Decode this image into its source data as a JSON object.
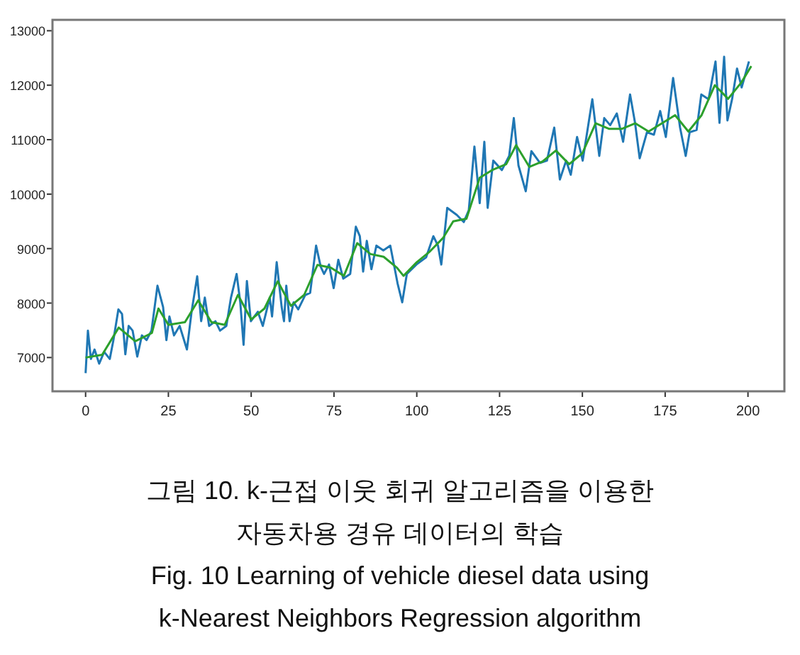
{
  "chart_data": {
    "type": "line",
    "annotations": [
      "그림 10. k-근접 이웃 회귀 알고리즘을 이용한 자동차용 경유 데이터의 학습",
      "Fig. 10 Learning of vehicle diesel data using k-Nearest Neighbors Regression algorithm"
    ],
    "xlim": [
      -10,
      211
    ],
    "xticks": [
      0,
      25,
      50,
      75,
      100,
      125,
      150,
      175,
      200
    ],
    "ylim": [
      6380,
      13200
    ],
    "yticks": [
      7000,
      8000,
      9000,
      10000,
      11000,
      12000,
      13000
    ],
    "grid": false,
    "series": [
      {
        "color": "#1f77b4",
        "x": [
          0,
          0.7,
          1.6,
          2.7,
          4.1,
          5.6,
          7.3,
          8.4,
          9.9,
          11,
          12,
          13,
          14.2,
          15.6,
          17,
          18.4,
          19.9,
          21.7,
          23.4,
          24.4,
          25.3,
          26.7,
          28.4,
          30.6,
          32,
          33.7,
          34.9,
          36,
          37.3,
          39.2,
          40.6,
          42.5,
          43.9,
          45.6,
          46.7,
          47.7,
          48.7,
          49.9,
          52,
          53.5,
          55.6,
          56.3,
          57.7,
          59.2,
          59.9,
          60.6,
          61.6,
          62.8,
          64.2,
          66.3,
          67.8,
          69.6,
          71,
          72,
          73.5,
          74.9,
          76.3,
          77.8,
          79.9,
          81.6,
          82.8,
          83.8,
          84.9,
          86.3,
          87.8,
          89.9,
          92,
          94.2,
          95.6,
          97,
          99.9,
          102.8,
          105,
          106.4,
          107.4,
          109.2,
          112.1,
          114.2,
          115.7,
          117.4,
          119,
          120.4,
          121.4,
          123.1,
          125.7,
          127.9,
          129.3,
          130.7,
          132.9,
          134.6,
          137.2,
          139.3,
          141.5,
          143.2,
          145.1,
          146.5,
          148.4,
          150.1,
          153,
          155.1,
          156.6,
          158.4,
          160.4,
          162.3,
          164.4,
          165.9,
          167.3,
          169.5,
          171.6,
          173.5,
          175.2,
          177.4,
          179.5,
          181.2,
          182.4,
          184.5,
          185.9,
          188.1,
          190.2,
          191.4,
          192.8,
          193.8,
          195.2,
          196.7,
          198.1,
          200.3
        ],
        "values": [
          6714,
          7494,
          6974,
          7147,
          6887,
          7104,
          6974,
          7320,
          7884,
          7800,
          7060,
          7580,
          7494,
          7017,
          7407,
          7320,
          7494,
          8318,
          7928,
          7320,
          7754,
          7407,
          7580,
          7147,
          7840,
          8491,
          7667,
          8100,
          7580,
          7667,
          7494,
          7580,
          8100,
          8535,
          8014,
          7234,
          8405,
          7667,
          7840,
          7580,
          8100,
          7754,
          8751,
          7928,
          7667,
          8318,
          7667,
          8014,
          7884,
          8144,
          8188,
          9055,
          8665,
          8535,
          8708,
          8275,
          8795,
          8448,
          8535,
          9402,
          9228,
          8578,
          9141,
          8621,
          9055,
          8968,
          9055,
          8361,
          8014,
          8535,
          8708,
          8838,
          9228,
          9055,
          8708,
          9748,
          9618,
          9488,
          9705,
          10875,
          9835,
          10962,
          9748,
          10615,
          10442,
          10702,
          11396,
          10529,
          10052,
          10789,
          10572,
          10615,
          11222,
          10269,
          10615,
          10355,
          11049,
          10615,
          11743,
          10702,
          11396,
          11266,
          11482,
          10962,
          11829,
          11309,
          10659,
          11136,
          11092,
          11526,
          11049,
          12133,
          11222,
          10702,
          11136,
          11179,
          11829,
          11743,
          12436,
          11309,
          12523,
          11352,
          11743,
          12306,
          11959,
          12436
        ]
      },
      {
        "color": "#2ca02c",
        "x": [
          0,
          5,
          10,
          15,
          20,
          22,
          25,
          30,
          34,
          38,
          42,
          46,
          50,
          54,
          58,
          62,
          66,
          70,
          74,
          78,
          82,
          86,
          90,
          94,
          96,
          100,
          104,
          108,
          111,
          115,
          119,
          123,
          127,
          130,
          134,
          138,
          142,
          146,
          150,
          154,
          158,
          162,
          166,
          170,
          174,
          178,
          182,
          186,
          190,
          194,
          198,
          201
        ],
        "values": [
          7000,
          7050,
          7550,
          7300,
          7450,
          7900,
          7600,
          7650,
          8050,
          7650,
          7600,
          8150,
          7700,
          7900,
          8400,
          7950,
          8150,
          8700,
          8650,
          8500,
          9100,
          8900,
          8850,
          8650,
          8500,
          8750,
          8950,
          9200,
          9500,
          9550,
          10300,
          10450,
          10550,
          10900,
          10500,
          10600,
          10800,
          10550,
          10750,
          11300,
          11200,
          11200,
          11300,
          11150,
          11300,
          11450,
          11150,
          11450,
          12000,
          11750,
          12050,
          12350
        ]
      }
    ]
  }
}
